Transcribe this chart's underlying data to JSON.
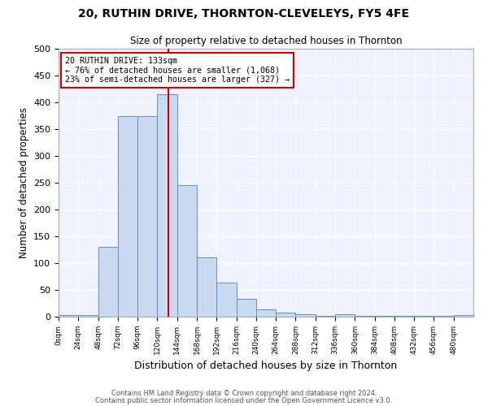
{
  "title": "20, RUTHIN DRIVE, THORNTON-CLEVELEYS, FY5 4FE",
  "subtitle": "Size of property relative to detached houses in Thornton",
  "xlabel": "Distribution of detached houses by size in Thornton",
  "ylabel": "Number of detached properties",
  "footnote1": "Contains HM Land Registry data © Crown copyright and database right 2024.",
  "footnote2": "Contains public sector information licensed under the Open Government Licence v3.0.",
  "bar_edges": [
    0,
    24,
    48,
    72,
    96,
    120,
    144,
    168,
    192,
    216,
    240,
    264,
    288,
    312,
    336,
    360,
    384,
    408,
    432,
    456,
    480,
    504
  ],
  "bar_heights": [
    3,
    3,
    130,
    375,
    375,
    415,
    245,
    110,
    63,
    33,
    14,
    8,
    5,
    2,
    5,
    1,
    1,
    1,
    1,
    1,
    3
  ],
  "property_sqm": 133,
  "annotation_title": "20 RUTHIN DRIVE: 133sqm",
  "annotation_line1": "← 76% of detached houses are smaller (1,068)",
  "annotation_line2": "23% of semi-detached houses are larger (327) →",
  "bar_facecolor": "#c9d9f0",
  "bar_edgecolor": "#6090c8",
  "vline_color": "#cc0000",
  "bg_color": "#eef2fc",
  "annotation_box_edgecolor": "#cc0000",
  "ylim": [
    0,
    500
  ],
  "xlim": [
    0,
    504
  ],
  "tick_positions": [
    0,
    24,
    48,
    72,
    96,
    120,
    144,
    168,
    192,
    216,
    240,
    264,
    288,
    312,
    336,
    360,
    384,
    408,
    432,
    456,
    480
  ],
  "yticks": [
    0,
    50,
    100,
    150,
    200,
    250,
    300,
    350,
    400,
    450,
    500
  ]
}
